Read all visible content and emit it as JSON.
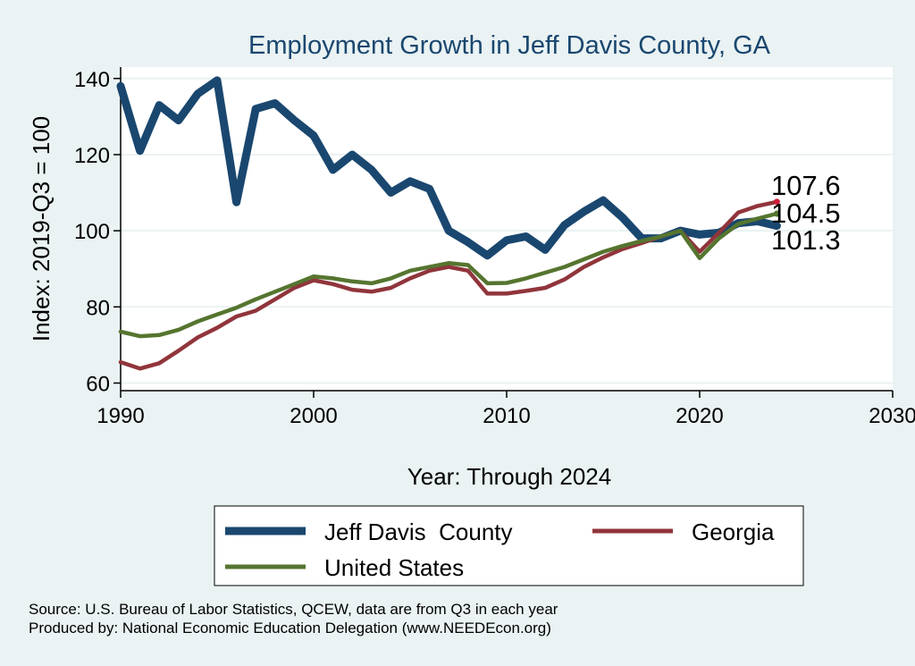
{
  "chart_data": {
    "type": "line",
    "title": "Employment Growth in Jeff Davis County, GA",
    "xlabel": "Year: Through 2024",
    "ylabel": "Index: 2019-Q3 = 100",
    "xlim": [
      1990,
      2030
    ],
    "ylim": [
      58,
      143
    ],
    "xticks": [
      1990,
      2000,
      2010,
      2020,
      2030
    ],
    "yticks": [
      60,
      80,
      100,
      120,
      140
    ],
    "grid": true,
    "legend_position": "bottom",
    "x": [
      1990,
      1991,
      1992,
      1993,
      1994,
      1995,
      1996,
      1997,
      1998,
      1999,
      2000,
      2001,
      2002,
      2003,
      2004,
      2005,
      2006,
      2007,
      2008,
      2009,
      2010,
      2011,
      2012,
      2013,
      2014,
      2015,
      2016,
      2017,
      2018,
      2019,
      2020,
      2021,
      2022,
      2023,
      2024
    ],
    "series": [
      {
        "name": "Jeff Davis  County",
        "color": "#1a476f",
        "values": [
          138,
          121,
          133,
          129,
          136,
          139.5,
          107.5,
          132,
          133.5,
          129,
          125,
          116,
          120,
          116,
          110,
          113,
          111,
          100,
          97,
          93.5,
          97.5,
          98.5,
          95,
          101.5,
          105,
          108,
          103.5,
          98,
          98,
          100,
          99,
          99.5,
          102,
          102.5,
          101.3
        ],
        "end_label": "101.3"
      },
      {
        "name": "Georgia",
        "color": "#90353b",
        "values": [
          65.5,
          63.8,
          65.2,
          68.5,
          72,
          74.5,
          77.5,
          79,
          82,
          85,
          87,
          86,
          84.5,
          84,
          85,
          87.5,
          89.5,
          90.5,
          89.5,
          83.5,
          83.5,
          84.2,
          85,
          87.2,
          90.5,
          93,
          95.2,
          96.8,
          98.5,
          100,
          94.5,
          99.5,
          104.8,
          106.5,
          107.6
        ],
        "end_label": "107.6"
      },
      {
        "name": "United States",
        "color": "#55752f",
        "values": [
          73.5,
          72.3,
          72.6,
          74,
          76.2,
          78,
          79.8,
          82,
          84,
          86,
          88,
          87.5,
          86.7,
          86.2,
          87.5,
          89.5,
          90.5,
          91.5,
          91,
          86.2,
          86.3,
          87.5,
          89,
          90.5,
          92.5,
          94.5,
          96,
          97.3,
          98.5,
          100,
          92.8,
          98,
          101.8,
          103.2,
          104.5
        ],
        "end_label": "104.5"
      }
    ],
    "source_lines": [
      "Source: U.S. Bureau of Labor Statistics, QCEW, data are from Q3 in each year",
      "Produced by: National Economic Education Delegation (www.NEEDEcon.org)"
    ]
  }
}
